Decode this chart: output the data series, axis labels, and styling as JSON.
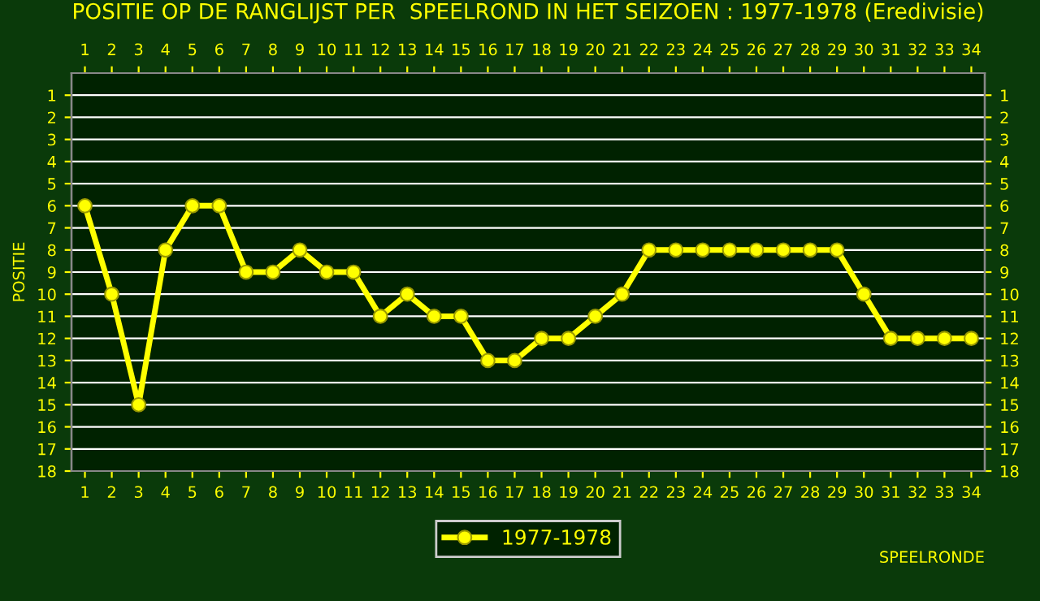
{
  "chart_data": {
    "type": "line",
    "title": "POSITIE OP DE RANGLIJST PER  SPEELROND IN HET SEIZOEN : 1977-1978 (Eredivisie)",
    "xlabel": "SPEELRONDE",
    "ylabel": "POSITIE",
    "x": [
      1,
      2,
      3,
      4,
      5,
      6,
      7,
      8,
      9,
      10,
      11,
      12,
      13,
      14,
      15,
      16,
      17,
      18,
      19,
      20,
      21,
      22,
      23,
      24,
      25,
      26,
      27,
      28,
      29,
      30,
      31,
      32,
      33,
      34
    ],
    "series": [
      {
        "name": "1977-1978",
        "color": "#ffff00",
        "values": [
          6,
          10,
          15,
          8,
          6,
          6,
          9,
          9,
          8,
          9,
          9,
          11,
          10,
          11,
          11,
          13,
          13,
          12,
          12,
          11,
          10,
          8,
          8,
          8,
          8,
          8,
          8,
          8,
          8,
          10,
          12,
          12,
          12,
          12
        ]
      }
    ],
    "xlim": [
      0.5,
      34.5
    ],
    "xticks": [
      1,
      2,
      3,
      4,
      5,
      6,
      7,
      8,
      9,
      10,
      11,
      12,
      13,
      14,
      15,
      16,
      17,
      18,
      19,
      20,
      21,
      22,
      23,
      24,
      25,
      26,
      27,
      28,
      29,
      30,
      31,
      32,
      33,
      34
    ],
    "x2lim": [
      0.5,
      34.5
    ],
    "x2ticks": [
      1,
      2,
      3,
      4,
      5,
      6,
      7,
      8,
      9,
      10,
      11,
      12,
      13,
      14,
      15,
      16,
      17,
      18,
      19,
      20,
      21,
      22,
      23,
      24,
      25,
      26,
      27,
      28,
      29,
      30,
      31,
      32,
      33,
      34
    ],
    "ylim": [
      18,
      0
    ],
    "yticks": [
      1,
      2,
      3,
      4,
      5,
      6,
      7,
      8,
      9,
      10,
      11,
      12,
      13,
      14,
      15,
      16,
      17,
      18
    ],
    "y2lim": [
      18,
      0
    ],
    "y2ticks": [
      1,
      2,
      3,
      4,
      5,
      6,
      7,
      8,
      9,
      10,
      11,
      12,
      13,
      14,
      15,
      16,
      17,
      18
    ],
    "grid": "y",
    "legend": "bottom",
    "marker": "circle",
    "line_style": "solid"
  }
}
